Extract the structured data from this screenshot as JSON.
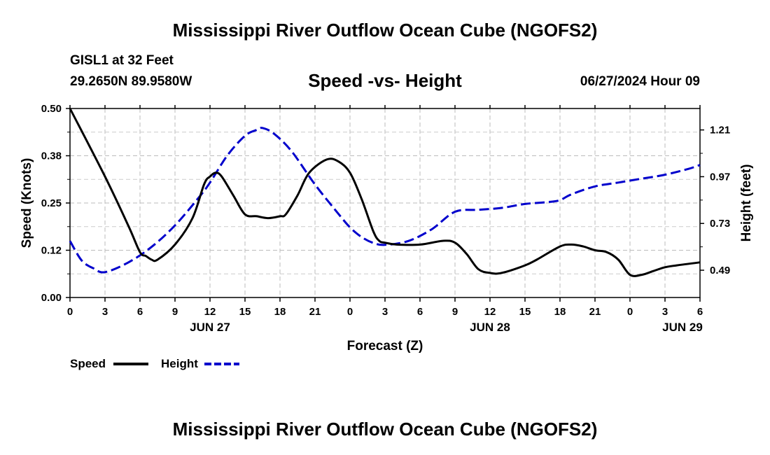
{
  "page": {
    "title": "Mississippi River Outflow Ocean Cube (NGOFS2)",
    "footer_title": "Mississippi River Outflow Ocean Cube (NGOFS2)",
    "station": "GISL1 at 32 Feet",
    "coords": "29.2650N  89.9580W",
    "datetime": "06/27/2024 Hour 09"
  },
  "chart_data": {
    "type": "line",
    "title": "Speed -vs- Height",
    "xlabel": "Forecast (Z)",
    "ylabel": "Speed (Knots)",
    "y2label": "Height (feet)",
    "xlim": [
      0,
      54
    ],
    "ylim": [
      0,
      0.5
    ],
    "y2lim": [
      0.35,
      1.32
    ],
    "x_ticks": [
      0,
      3,
      6,
      9,
      12,
      15,
      18,
      21,
      24,
      27,
      30,
      33,
      36,
      39,
      42,
      45,
      48,
      51,
      54
    ],
    "x_tick_labels": [
      "0",
      "3",
      "6",
      "9",
      "12",
      "15",
      "18",
      "21",
      "0",
      "3",
      "6",
      "9",
      "12",
      "15",
      "18",
      "21",
      "0",
      "3",
      "6"
    ],
    "date_labels": [
      {
        "x": 12,
        "text": "JUN 27"
      },
      {
        "x": 36,
        "text": "JUN 28"
      },
      {
        "x": 52.5,
        "text": "JUN 29"
      }
    ],
    "y_ticks": [
      0,
      0.125,
      0.25,
      0.375,
      0.5
    ],
    "y_tick_labels": [
      "0.00",
      "0.12",
      "0.25",
      "0.38",
      "0.50"
    ],
    "y2_ticks": [
      0.49,
      0.73,
      0.97,
      1.21
    ],
    "y2_tick_labels": [
      "0.49",
      "0.73",
      "0.97",
      "1.21"
    ],
    "legend": [
      "Speed",
      "Height"
    ],
    "series": [
      {
        "name": "Speed",
        "axis": "left",
        "color": "#000000",
        "dash": "solid",
        "points": [
          [
            0,
            0.5
          ],
          [
            3,
            0.32
          ],
          [
            5,
            0.19
          ],
          [
            6,
            0.12
          ],
          [
            6.5,
            0.11
          ],
          [
            7,
            0.1
          ],
          [
            7.5,
            0.1
          ],
          [
            9,
            0.14
          ],
          [
            10.5,
            0.21
          ],
          [
            11.5,
            0.3
          ],
          [
            12,
            0.32
          ],
          [
            12.5,
            0.33
          ],
          [
            13,
            0.32
          ],
          [
            14,
            0.27
          ],
          [
            15,
            0.22
          ],
          [
            16,
            0.215
          ],
          [
            17,
            0.21
          ],
          [
            18,
            0.215
          ],
          [
            18.5,
            0.22
          ],
          [
            19.5,
            0.27
          ],
          [
            20.5,
            0.33
          ],
          [
            22,
            0.365
          ],
          [
            23,
            0.36
          ],
          [
            24,
            0.33
          ],
          [
            25,
            0.26
          ],
          [
            26,
            0.175
          ],
          [
            26.5,
            0.15
          ],
          [
            27,
            0.145
          ],
          [
            28,
            0.14
          ],
          [
            30,
            0.14
          ],
          [
            32,
            0.15
          ],
          [
            33,
            0.145
          ],
          [
            34,
            0.115
          ],
          [
            35,
            0.075
          ],
          [
            36,
            0.065
          ],
          [
            37,
            0.065
          ],
          [
            39,
            0.085
          ],
          [
            40,
            0.1
          ],
          [
            42,
            0.135
          ],
          [
            43,
            0.14
          ],
          [
            44,
            0.135
          ],
          [
            45,
            0.125
          ],
          [
            46,
            0.12
          ],
          [
            47,
            0.1
          ],
          [
            48,
            0.06
          ],
          [
            49,
            0.06
          ],
          [
            50,
            0.07
          ],
          [
            51,
            0.08
          ],
          [
            52,
            0.085
          ],
          [
            54,
            0.093
          ]
        ]
      },
      {
        "name": "Height",
        "axis": "right",
        "color": "#0000cc",
        "dash": "dashed",
        "points": [
          [
            0,
            0.64
          ],
          [
            1,
            0.54
          ],
          [
            2,
            0.5
          ],
          [
            3,
            0.48
          ],
          [
            5,
            0.53
          ],
          [
            7,
            0.61
          ],
          [
            9,
            0.72
          ],
          [
            11,
            0.86
          ],
          [
            12,
            0.94
          ],
          [
            13.5,
            1.08
          ],
          [
            15,
            1.18
          ],
          [
            16,
            1.21
          ],
          [
            16.5,
            1.22
          ],
          [
            17.5,
            1.19
          ],
          [
            19,
            1.1
          ],
          [
            21,
            0.93
          ],
          [
            23,
            0.78
          ],
          [
            24,
            0.71
          ],
          [
            25,
            0.66
          ],
          [
            26,
            0.63
          ],
          [
            27,
            0.62
          ],
          [
            29,
            0.64
          ],
          [
            31,
            0.7
          ],
          [
            33,
            0.79
          ],
          [
            35,
            0.8
          ],
          [
            37,
            0.81
          ],
          [
            39,
            0.83
          ],
          [
            41,
            0.84
          ],
          [
            42,
            0.85
          ],
          [
            43,
            0.88
          ],
          [
            45,
            0.92
          ],
          [
            47,
            0.94
          ],
          [
            49,
            0.96
          ],
          [
            51,
            0.98
          ],
          [
            53,
            1.01
          ],
          [
            54,
            1.03
          ]
        ]
      }
    ]
  }
}
